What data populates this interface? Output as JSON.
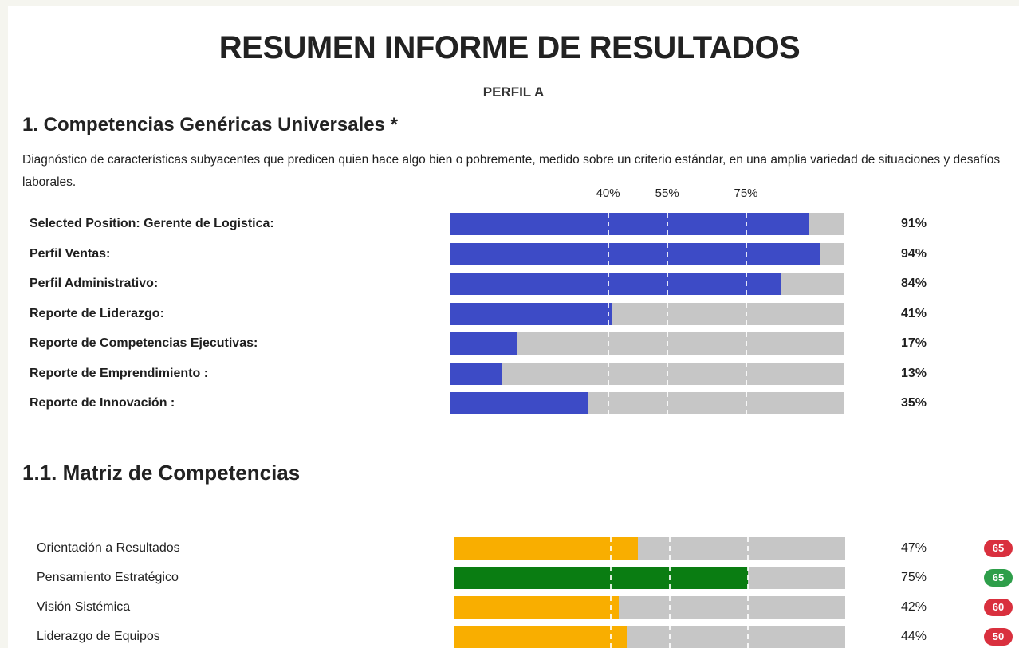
{
  "header": {
    "title": "RESUMEN INFORME DE RESULTADOS",
    "subtitle": "PERFIL A"
  },
  "section1": {
    "heading": "1. Competencias Genéricas Universales *",
    "description": "Diagnóstico de características subyacentes que predicen quien hace algo bien o pobremente, medido sobre un criterio estándar, en una amplia variedad de situaciones y desafíos laborales.",
    "color": "#3d4bc6",
    "thresholds": [
      {
        "value": 40,
        "label": "40%"
      },
      {
        "value": 55,
        "label": "55%"
      },
      {
        "value": 75,
        "label": "75%"
      }
    ],
    "rows": [
      {
        "label": "Selected Position: Gerente de Logistica:",
        "value": 91,
        "value_label": "91%"
      },
      {
        "label": "Perfil Ventas:",
        "value": 94,
        "value_label": "94%"
      },
      {
        "label": "Perfil Administrativo:",
        "value": 84,
        "value_label": "84%"
      },
      {
        "label": "Reporte de Liderazgo:",
        "value": 41,
        "value_label": "41%"
      },
      {
        "label": "Reporte de Competencias Ejecutivas:",
        "value": 17,
        "value_label": "17%"
      },
      {
        "label": "Reporte de Emprendimiento :",
        "value": 13,
        "value_label": "13%"
      },
      {
        "label": "Reporte de Innovación :",
        "value": 35,
        "value_label": "35%"
      }
    ]
  },
  "section2": {
    "heading": "1.1. Matriz de Competencias",
    "rows": [
      {
        "label": "Orientación a Resultados",
        "value": 47,
        "value_label": "47%",
        "color": "#f9ae00",
        "score": 65,
        "score_color": "#d9303e"
      },
      {
        "label": "Pensamiento Estratégico",
        "value": 75,
        "value_label": "75%",
        "color": "#0a7d12",
        "score": 65,
        "score_color": "#2e9e4a"
      },
      {
        "label": "Visión Sistémica",
        "value": 42,
        "value_label": "42%",
        "color": "#f9ae00",
        "score": 60,
        "score_color": "#d9303e"
      },
      {
        "label": "Liderazgo de Equipos",
        "value": 44,
        "value_label": "44%",
        "color": "#f9ae00",
        "score": 50,
        "score_color": "#d9303e"
      }
    ]
  }
}
